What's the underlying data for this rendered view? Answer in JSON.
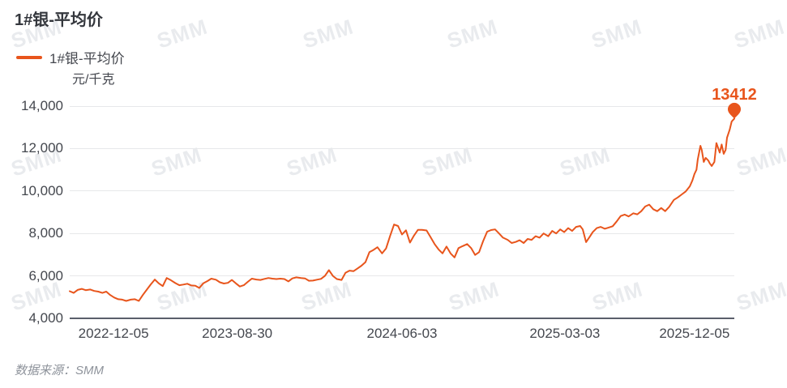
{
  "page": {
    "title": "1#银-平均价",
    "source_note": "数据来源：SMM"
  },
  "legend": {
    "label": "1#银-平均价"
  },
  "watermark": {
    "text": "SMM"
  },
  "colors": {
    "accent_orange": "#E8551C",
    "title_text": "#34373D",
    "axis_text": "#44474E",
    "gridline": "#E7E8EA",
    "axis_line": "#5A5F6B",
    "watermark": "#E9EBEE",
    "source_text": "#8E939B"
  },
  "chart_data": {
    "type": "line",
    "title": "1#银-平均价",
    "unit": "元/千克",
    "ylabel": "元/千克",
    "ylim": [
      4000,
      14000
    ],
    "grid": true,
    "legend_position": "top-left",
    "y_ticks": [
      {
        "value": 14000,
        "label": "14,000"
      },
      {
        "value": 12000,
        "label": "12,000"
      },
      {
        "value": 10000,
        "label": "10,000"
      },
      {
        "value": 8000,
        "label": "8,000"
      },
      {
        "value": 6000,
        "label": "6,000"
      },
      {
        "value": 4000,
        "label": "4,000"
      }
    ],
    "x_ticks": [
      {
        "label": "2022-12-05",
        "pos": 0.066
      },
      {
        "label": "2023-08-30",
        "pos": 0.252
      },
      {
        "label": "2024-06-03",
        "pos": 0.5
      },
      {
        "label": "2025-03-03",
        "pos": 0.745
      },
      {
        "label": "2025-12-05",
        "pos": 0.94
      }
    ],
    "series": [
      {
        "name": "1#银-平均价",
        "color": "#E8551C",
        "last_value": 13412,
        "last_value_label": "13412",
        "points": [
          [
            0,
            5280
          ],
          [
            0.006,
            5200
          ],
          [
            0.012,
            5340
          ],
          [
            0.018,
            5390
          ],
          [
            0.024,
            5330
          ],
          [
            0.031,
            5360
          ],
          [
            0.037,
            5290
          ],
          [
            0.043,
            5260
          ],
          [
            0.049,
            5200
          ],
          [
            0.055,
            5260
          ],
          [
            0.061,
            5100
          ],
          [
            0.067,
            4980
          ],
          [
            0.073,
            4900
          ],
          [
            0.079,
            4880
          ],
          [
            0.085,
            4820
          ],
          [
            0.092,
            4880
          ],
          [
            0.098,
            4900
          ],
          [
            0.104,
            4820
          ],
          [
            0.11,
            5100
          ],
          [
            0.116,
            5350
          ],
          [
            0.122,
            5600
          ],
          [
            0.128,
            5830
          ],
          [
            0.134,
            5650
          ],
          [
            0.14,
            5520
          ],
          [
            0.146,
            5900
          ],
          [
            0.152,
            5800
          ],
          [
            0.159,
            5660
          ],
          [
            0.165,
            5560
          ],
          [
            0.171,
            5590
          ],
          [
            0.177,
            5630
          ],
          [
            0.183,
            5550
          ],
          [
            0.189,
            5540
          ],
          [
            0.195,
            5430
          ],
          [
            0.201,
            5650
          ],
          [
            0.207,
            5750
          ],
          [
            0.213,
            5870
          ],
          [
            0.22,
            5820
          ],
          [
            0.226,
            5700
          ],
          [
            0.232,
            5640
          ],
          [
            0.238,
            5670
          ],
          [
            0.244,
            5810
          ],
          [
            0.25,
            5650
          ],
          [
            0.256,
            5500
          ],
          [
            0.262,
            5560
          ],
          [
            0.268,
            5720
          ],
          [
            0.274,
            5870
          ],
          [
            0.281,
            5830
          ],
          [
            0.287,
            5810
          ],
          [
            0.293,
            5860
          ],
          [
            0.299,
            5900
          ],
          [
            0.305,
            5870
          ],
          [
            0.311,
            5850
          ],
          [
            0.317,
            5870
          ],
          [
            0.323,
            5850
          ],
          [
            0.329,
            5740
          ],
          [
            0.335,
            5880
          ],
          [
            0.341,
            5930
          ],
          [
            0.348,
            5900
          ],
          [
            0.354,
            5880
          ],
          [
            0.36,
            5770
          ],
          [
            0.366,
            5780
          ],
          [
            0.372,
            5820
          ],
          [
            0.378,
            5860
          ],
          [
            0.384,
            6000
          ],
          [
            0.39,
            6270
          ],
          [
            0.396,
            6000
          ],
          [
            0.402,
            5850
          ],
          [
            0.409,
            5810
          ],
          [
            0.415,
            6150
          ],
          [
            0.421,
            6250
          ],
          [
            0.427,
            6220
          ],
          [
            0.433,
            6350
          ],
          [
            0.439,
            6480
          ],
          [
            0.445,
            6650
          ],
          [
            0.451,
            7120
          ],
          [
            0.457,
            7220
          ],
          [
            0.463,
            7350
          ],
          [
            0.47,
            7060
          ],
          [
            0.476,
            7290
          ],
          [
            0.482,
            7870
          ],
          [
            0.488,
            8420
          ],
          [
            0.494,
            8350
          ],
          [
            0.5,
            7950
          ],
          [
            0.506,
            8150
          ],
          [
            0.512,
            7570
          ],
          [
            0.518,
            7900
          ],
          [
            0.524,
            8170
          ],
          [
            0.53,
            8170
          ],
          [
            0.537,
            8140
          ],
          [
            0.543,
            7820
          ],
          [
            0.549,
            7500
          ],
          [
            0.555,
            7250
          ],
          [
            0.561,
            7060
          ],
          [
            0.567,
            7380
          ],
          [
            0.573,
            7060
          ],
          [
            0.579,
            6870
          ],
          [
            0.585,
            7310
          ],
          [
            0.591,
            7400
          ],
          [
            0.598,
            7500
          ],
          [
            0.604,
            7310
          ],
          [
            0.61,
            6990
          ],
          [
            0.616,
            7120
          ],
          [
            0.622,
            7630
          ],
          [
            0.628,
            8080
          ],
          [
            0.634,
            8160
          ],
          [
            0.64,
            8190
          ],
          [
            0.646,
            8000
          ],
          [
            0.652,
            7800
          ],
          [
            0.659,
            7700
          ],
          [
            0.665,
            7550
          ],
          [
            0.671,
            7600
          ],
          [
            0.677,
            7680
          ],
          [
            0.683,
            7550
          ],
          [
            0.689,
            7740
          ],
          [
            0.695,
            7700
          ],
          [
            0.701,
            7870
          ],
          [
            0.707,
            7800
          ],
          [
            0.713,
            8000
          ],
          [
            0.72,
            7870
          ],
          [
            0.726,
            8120
          ],
          [
            0.732,
            8000
          ],
          [
            0.738,
            8190
          ],
          [
            0.744,
            8060
          ],
          [
            0.75,
            8250
          ],
          [
            0.756,
            8120
          ],
          [
            0.762,
            8310
          ],
          [
            0.768,
            8350
          ],
          [
            0.772,
            8190
          ],
          [
            0.777,
            7590
          ],
          [
            0.783,
            7870
          ],
          [
            0.787,
            8060
          ],
          [
            0.793,
            8250
          ],
          [
            0.799,
            8310
          ],
          [
            0.805,
            8220
          ],
          [
            0.811,
            8280
          ],
          [
            0.817,
            8340
          ],
          [
            0.823,
            8570
          ],
          [
            0.829,
            8820
          ],
          [
            0.835,
            8890
          ],
          [
            0.841,
            8800
          ],
          [
            0.848,
            8950
          ],
          [
            0.854,
            8900
          ],
          [
            0.86,
            9050
          ],
          [
            0.866,
            9270
          ],
          [
            0.872,
            9360
          ],
          [
            0.878,
            9140
          ],
          [
            0.884,
            9050
          ],
          [
            0.89,
            9200
          ],
          [
            0.896,
            9050
          ],
          [
            0.902,
            9250
          ],
          [
            0.909,
            9580
          ],
          [
            0.915,
            9700
          ],
          [
            0.921,
            9840
          ],
          [
            0.927,
            9980
          ],
          [
            0.933,
            10220
          ],
          [
            0.937,
            10500
          ],
          [
            0.94,
            10800
          ],
          [
            0.943,
            11000
          ],
          [
            0.945,
            11490
          ],
          [
            0.949,
            12130
          ],
          [
            0.951,
            11940
          ],
          [
            0.954,
            11370
          ],
          [
            0.957,
            11560
          ],
          [
            0.961,
            11430
          ],
          [
            0.963,
            11300
          ],
          [
            0.966,
            11180
          ],
          [
            0.97,
            11370
          ],
          [
            0.973,
            12260
          ],
          [
            0.976,
            12000
          ],
          [
            0.978,
            11810
          ],
          [
            0.981,
            12190
          ],
          [
            0.984,
            11750
          ],
          [
            0.987,
            11940
          ],
          [
            0.989,
            12510
          ],
          [
            0.993,
            12890
          ],
          [
            0.996,
            13270
          ],
          [
            1,
            13412
          ]
        ]
      }
    ]
  }
}
